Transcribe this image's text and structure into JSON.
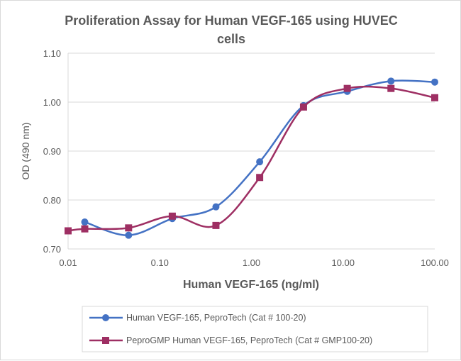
{
  "chart_data": {
    "type": "line",
    "title": "Proliferation Assay for Human VEGF-165 using HUVEC cells",
    "title_lines": [
      "Proliferation Assay for Human VEGF-165 using HUVEC",
      "cells"
    ],
    "xlabel": "Human VEGF-165 (ng/ml)",
    "ylabel": "OD (490 nm)",
    "x_scale": "log",
    "xlim": [
      0.01,
      100
    ],
    "ylim": [
      0.7,
      1.1
    ],
    "x_ticks": [
      "0.01",
      "0.10",
      "1.00",
      "10.00",
      "100.00"
    ],
    "y_ticks": [
      "0.70",
      "0.80",
      "0.90",
      "1.00",
      "1.10"
    ],
    "grid": "horizontal",
    "legend_position": "bottom",
    "series": [
      {
        "name": "Human VEGF-165, PeproTech (Cat # 100-20)",
        "color": "#4472c4",
        "marker": "circle",
        "x": [
          0.0152,
          0.0457,
          0.137,
          0.41,
          1.23,
          3.7,
          11.1,
          33.3,
          100
        ],
        "y": [
          0.755,
          0.728,
          0.762,
          0.786,
          0.878,
          0.993,
          1.022,
          1.043,
          1.041
        ]
      },
      {
        "name": "PeproGMP Human VEGF-165, PeproTech (Cat # GMP100-20)",
        "color": "#9e2f63",
        "marker": "square",
        "x": [
          0.01,
          0.0152,
          0.0457,
          0.137,
          0.41,
          1.23,
          3.7,
          11.1,
          33.3,
          100
        ],
        "y": [
          0.737,
          0.741,
          0.743,
          0.767,
          0.748,
          0.846,
          0.99,
          1.028,
          1.028,
          1.009
        ]
      }
    ]
  }
}
